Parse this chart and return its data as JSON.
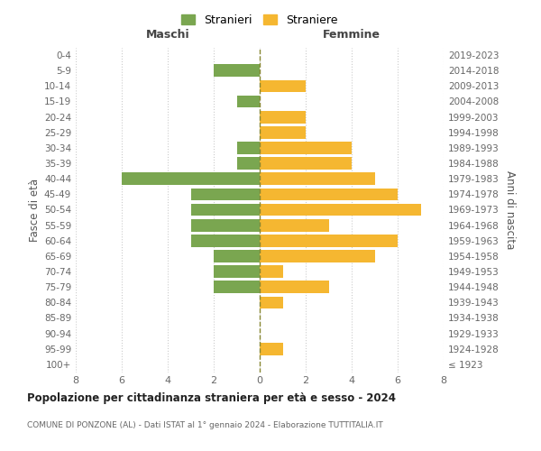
{
  "age_groups": [
    "100+",
    "95-99",
    "90-94",
    "85-89",
    "80-84",
    "75-79",
    "70-74",
    "65-69",
    "60-64",
    "55-59",
    "50-54",
    "45-49",
    "40-44",
    "35-39",
    "30-34",
    "25-29",
    "20-24",
    "15-19",
    "10-14",
    "5-9",
    "0-4"
  ],
  "birth_years": [
    "≤ 1923",
    "1924-1928",
    "1929-1933",
    "1934-1938",
    "1939-1943",
    "1944-1948",
    "1949-1953",
    "1954-1958",
    "1959-1963",
    "1964-1968",
    "1969-1973",
    "1974-1978",
    "1979-1983",
    "1984-1988",
    "1989-1993",
    "1994-1998",
    "1999-2003",
    "2004-2008",
    "2009-2013",
    "2014-2018",
    "2019-2023"
  ],
  "males": [
    0,
    0,
    0,
    0,
    0,
    2,
    2,
    2,
    3,
    3,
    3,
    3,
    6,
    1,
    1,
    0,
    0,
    1,
    0,
    2,
    0
  ],
  "females": [
    0,
    1,
    0,
    0,
    1,
    3,
    1,
    5,
    6,
    3,
    7,
    6,
    5,
    4,
    4,
    2,
    2,
    0,
    2,
    0,
    0
  ],
  "male_color": "#7aa650",
  "female_color": "#f5b731",
  "background_color": "#ffffff",
  "grid_color": "#cccccc",
  "title": "Popolazione per cittadinanza straniera per età e sesso - 2024",
  "subtitle": "COMUNE DI PONZONE (AL) - Dati ISTAT al 1° gennaio 2024 - Elaborazione TUTTITALIA.IT",
  "xlabel_left": "Maschi",
  "xlabel_right": "Femmine",
  "ylabel_left": "Fasce di età",
  "ylabel_right": "Anni di nascita",
  "legend_male": "Stranieri",
  "legend_female": "Straniere",
  "xlim": 8,
  "bar_height": 0.8
}
